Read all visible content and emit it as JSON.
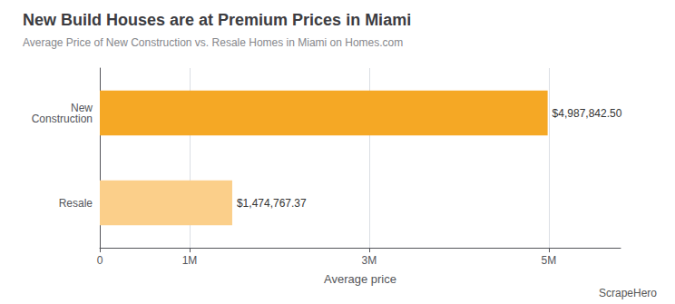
{
  "chart_data": {
    "type": "bar",
    "orientation": "horizontal",
    "title": "New Build Houses are at Premium Prices in Miami",
    "subtitle": "Average Price of New Construction vs. Resale Homes in Miami on Homes.com",
    "categories": [
      "New\nConstruction",
      "Resale"
    ],
    "values": [
      4987842.5,
      1474767.37
    ],
    "value_labels": [
      "$4,987,842.50",
      "$1,474,767.37"
    ],
    "colors": [
      "#F5A825",
      "#FBCF8A"
    ],
    "xlabel": "Average price",
    "xlim": [
      0,
      5800000
    ],
    "xticks": [
      0,
      {
        "value": 1000000,
        "label": "1M"
      },
      {
        "value": 3000000,
        "label": "3M"
      },
      {
        "value": 5000000,
        "label": "5M"
      }
    ],
    "grid": true,
    "data_labels": true,
    "annotations": [
      "ScrapeHero"
    ]
  }
}
